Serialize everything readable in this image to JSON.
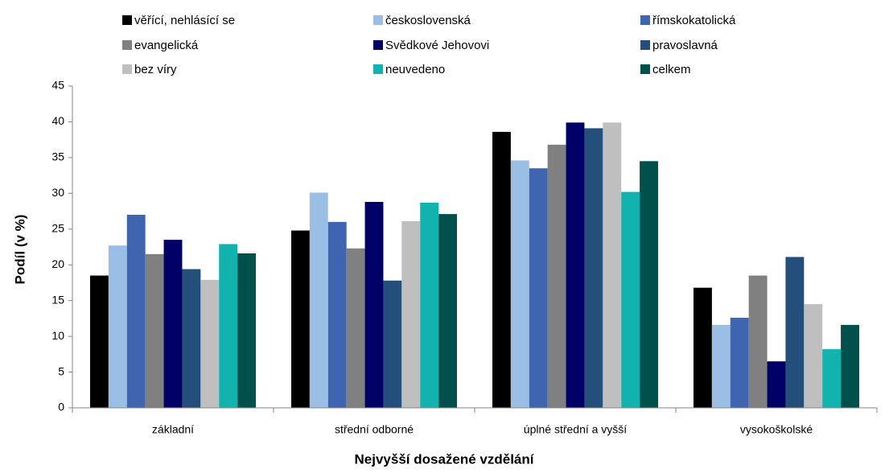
{
  "chart_data": {
    "type": "bar",
    "x_label": "Nejvyšší dosažené vzdělání",
    "y_label": "Podíl (v %)",
    "categories": [
      "základní",
      "střední odborné",
      "úplné střední a vyšší",
      "vysokoškolské"
    ],
    "series": [
      {
        "name": "věřící, nehlásící se",
        "color": "#000000",
        "values": [
          18.5,
          24.8,
          38.6,
          16.8
        ]
      },
      {
        "name": "československá",
        "color": "#9bbfe4",
        "values": [
          22.7,
          30.1,
          34.6,
          11.6
        ]
      },
      {
        "name": "římskokatolická",
        "color": "#3f65b0",
        "values": [
          27,
          26,
          33.5,
          12.6
        ]
      },
      {
        "name": "evangelická",
        "color": "#808080",
        "values": [
          21.5,
          22.3,
          36.8,
          18.5
        ]
      },
      {
        "name": "Svědkové Jehovovi",
        "color": "#000066",
        "values": [
          23.5,
          28.8,
          39.9,
          6.5
        ]
      },
      {
        "name": "pravoslavná",
        "color": "#234f7a",
        "values": [
          19.4,
          17.8,
          39.1,
          21.1
        ]
      },
      {
        "name": "bez víry",
        "color": "#bfbfbf",
        "values": [
          17.9,
          26.1,
          39.9,
          14.5
        ]
      },
      {
        "name": "neuvedeno",
        "color": "#12b3ae",
        "values": [
          22.9,
          28.7,
          30.2,
          8.2
        ]
      },
      {
        "name": "celkem",
        "color": "#00504c",
        "values": [
          21.6,
          27.1,
          34.5,
          11.6
        ]
      }
    ],
    "ylim": [
      0,
      45
    ],
    "yticks": [
      0,
      5,
      10,
      15,
      20,
      25,
      30,
      35,
      40,
      45
    ],
    "grid": false
  }
}
